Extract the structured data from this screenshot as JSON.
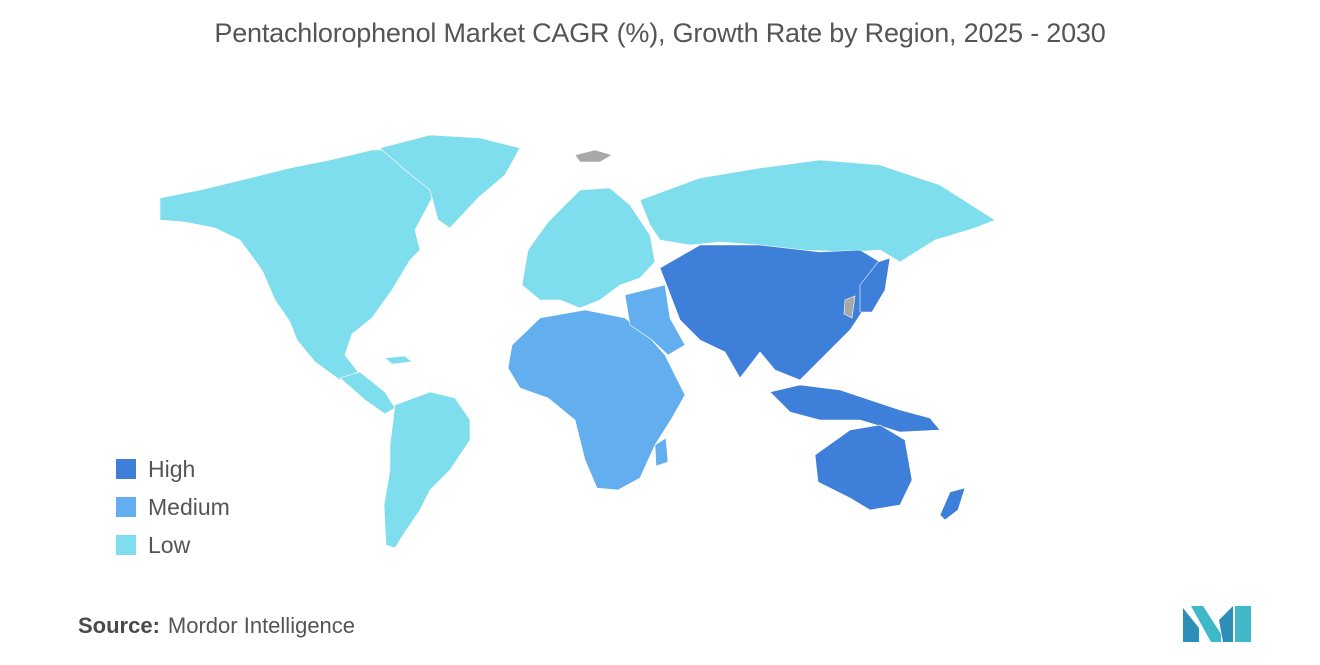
{
  "title": "Pentachlorophenol Market CAGR (%), Growth Rate by Region, 2025 - 2030",
  "colors": {
    "high": "#3d7fd9",
    "medium": "#62aeee",
    "low": "#7fdeee",
    "no_data": "#a8a8a8"
  },
  "legend": [
    {
      "label": "High",
      "color": "#3d7fd9"
    },
    {
      "label": "Medium",
      "color": "#62aeee"
    },
    {
      "label": "Low",
      "color": "#7fdeee"
    }
  ],
  "regions": [
    {
      "name": "North America",
      "level": "Low"
    },
    {
      "name": "South America",
      "level": "Low"
    },
    {
      "name": "Europe",
      "level": "Low"
    },
    {
      "name": "Russia",
      "level": "Low"
    },
    {
      "name": "Middle East and Africa",
      "level": "Medium"
    },
    {
      "name": "Asia-Pacific",
      "level": "High"
    }
  ],
  "source": {
    "label": "Source:",
    "value": "Mordor Intelligence"
  }
}
